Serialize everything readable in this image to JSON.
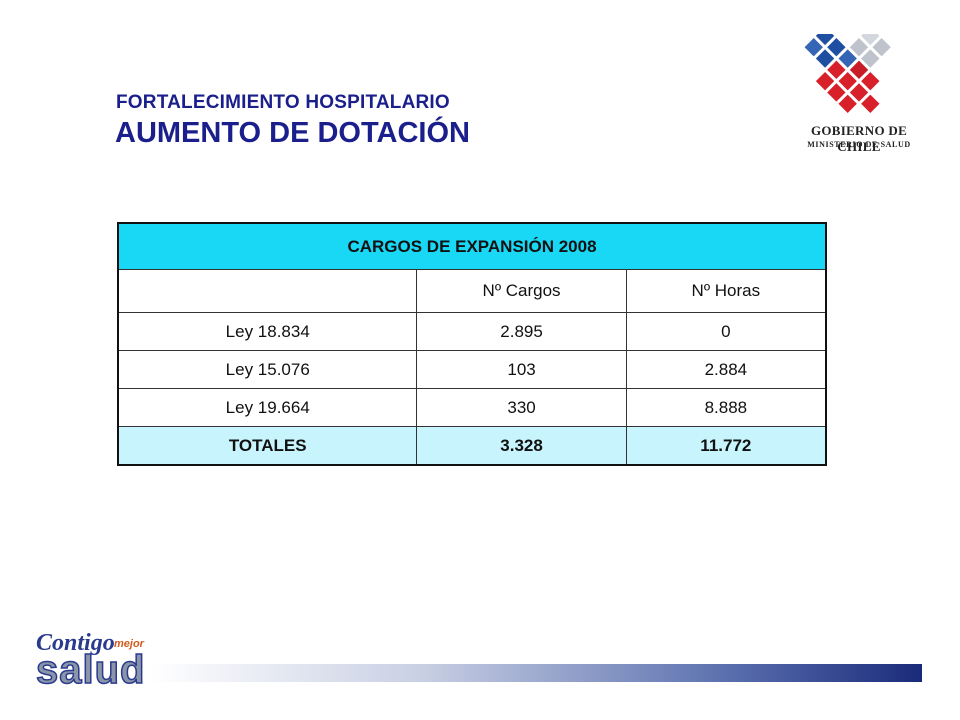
{
  "header": {
    "kicker": "FORTALECIMIENTO HOSPITALARIO",
    "title": "AUMENTO DE DOTACIÓN"
  },
  "logo": {
    "line1": "GOBIERNO DE CHILE",
    "line2": "MINISTERIO DE SALUD",
    "colors": {
      "red": "#d8202a",
      "blue": "#1f4fa0",
      "gray": "#bfc3cc"
    }
  },
  "table": {
    "title": "CARGOS DE EXPANSIÓN 2008",
    "columns": [
      "",
      "Nº Cargos",
      "Nº Horas"
    ],
    "rows": [
      {
        "label": "Ley 18.834",
        "cargos": "2.895",
        "horas": "0"
      },
      {
        "label": "Ley 15.076",
        "cargos": "103",
        "horas": "2.884"
      },
      {
        "label": "Ley 19.664",
        "cargos": "330",
        "horas": "8.888"
      }
    ],
    "total": {
      "label": "TOTALES",
      "cargos": "3.328",
      "horas": "11.772"
    },
    "header_color": "#19d8f5",
    "total_color": "#c8f5fd"
  },
  "brand": {
    "contigo": "Contigo",
    "mejor": "mejor",
    "salud": "salud"
  }
}
